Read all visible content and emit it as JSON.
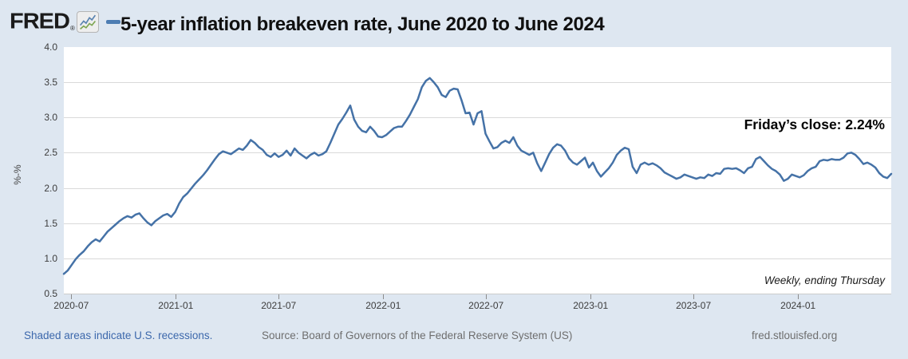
{
  "header": {
    "logo_text": "FRED",
    "registered_mark": "®",
    "title": "5-year inflation breakeven rate, June 2020 to June 2024"
  },
  "chart_data": {
    "type": "line",
    "title": "5-year inflation breakeven rate, June 2020 to June 2024",
    "xlabel": "",
    "ylabel": "%-%",
    "ylim": [
      0.5,
      4.0
    ],
    "yticks": [
      0.5,
      1.0,
      1.5,
      2.0,
      2.5,
      3.0,
      3.5,
      4.0
    ],
    "ytick_labels": [
      "0.5",
      "1.0",
      "1.5",
      "2.0",
      "2.5",
      "3.0",
      "3.5",
      "4.0"
    ],
    "xticks": [
      {
        "date": "2020-07-01",
        "label": "2020-07"
      },
      {
        "date": "2021-01-01",
        "label": "2021-01"
      },
      {
        "date": "2021-07-01",
        "label": "2021-07"
      },
      {
        "date": "2022-01-01",
        "label": "2022-01"
      },
      {
        "date": "2022-07-01",
        "label": "2022-07"
      },
      {
        "date": "2023-01-01",
        "label": "2023-01"
      },
      {
        "date": "2023-07-01",
        "label": "2023-07"
      },
      {
        "date": "2024-01-01",
        "label": "2024-01"
      }
    ],
    "grid": true,
    "legend": false,
    "line_color": "#4572a7",
    "series_start_date": "2020-06-18",
    "series_end_date": "2024-06-13",
    "interval_days": 7,
    "values": [
      0.78,
      0.83,
      0.91,
      0.99,
      1.05,
      1.1,
      1.17,
      1.23,
      1.27,
      1.24,
      1.31,
      1.38,
      1.43,
      1.48,
      1.53,
      1.57,
      1.6,
      1.58,
      1.62,
      1.64,
      1.57,
      1.51,
      1.47,
      1.53,
      1.57,
      1.61,
      1.63,
      1.59,
      1.66,
      1.78,
      1.87,
      1.92,
      1.99,
      2.06,
      2.12,
      2.18,
      2.25,
      2.33,
      2.41,
      2.48,
      2.52,
      2.5,
      2.48,
      2.52,
      2.56,
      2.54,
      2.6,
      2.68,
      2.64,
      2.58,
      2.54,
      2.47,
      2.44,
      2.49,
      2.44,
      2.47,
      2.53,
      2.46,
      2.56,
      2.5,
      2.46,
      2.42,
      2.47,
      2.5,
      2.46,
      2.48,
      2.52,
      2.64,
      2.77,
      2.9,
      2.98,
      3.07,
      3.17,
      2.97,
      2.87,
      2.81,
      2.79,
      2.87,
      2.81,
      2.73,
      2.72,
      2.75,
      2.8,
      2.85,
      2.87,
      2.87,
      2.95,
      3.04,
      3.15,
      3.26,
      3.43,
      3.52,
      3.56,
      3.5,
      3.43,
      3.32,
      3.29,
      3.38,
      3.41,
      3.4,
      3.24,
      3.06,
      3.07,
      2.9,
      3.06,
      3.09,
      2.77,
      2.66,
      2.56,
      2.58,
      2.64,
      2.67,
      2.64,
      2.72,
      2.6,
      2.53,
      2.5,
      2.47,
      2.5,
      2.35,
      2.24,
      2.36,
      2.48,
      2.57,
      2.62,
      2.6,
      2.53,
      2.42,
      2.36,
      2.33,
      2.38,
      2.43,
      2.29,
      2.36,
      2.24,
      2.16,
      2.22,
      2.28,
      2.36,
      2.47,
      2.53,
      2.57,
      2.55,
      2.3,
      2.21,
      2.33,
      2.36,
      2.33,
      2.35,
      2.32,
      2.28,
      2.22,
      2.19,
      2.16,
      2.13,
      2.15,
      2.19,
      2.17,
      2.15,
      2.13,
      2.15,
      2.14,
      2.19,
      2.17,
      2.21,
      2.2,
      2.27,
      2.28,
      2.27,
      2.28,
      2.25,
      2.21,
      2.28,
      2.3,
      2.41,
      2.44,
      2.38,
      2.32,
      2.27,
      2.24,
      2.19,
      2.1,
      2.13,
      2.19,
      2.17,
      2.15,
      2.18,
      2.24,
      2.28,
      2.3,
      2.38,
      2.4,
      2.39,
      2.41,
      2.4,
      2.4,
      2.43,
      2.49,
      2.5,
      2.47,
      2.41,
      2.34,
      2.36,
      2.33,
      2.29,
      2.21,
      2.16,
      2.14,
      2.2
    ],
    "annotations": {
      "friday_close": "Friday’s close: 2.24%",
      "frequency_note": "Weekly, ending Thursday"
    }
  },
  "footer": {
    "recession_note": "Shaded areas indicate U.S. recessions.",
    "source": "Source: Board of Governors of the Federal Reserve System (US)",
    "site": "fred.stlouisfed.org"
  },
  "colors": {
    "background": "#dee7f1",
    "plot_background": "#ffffff",
    "gridline": "#d9d9d9",
    "line": "#4572a7",
    "link": "#3c68ac",
    "footer_text": "#6e6e6e"
  }
}
